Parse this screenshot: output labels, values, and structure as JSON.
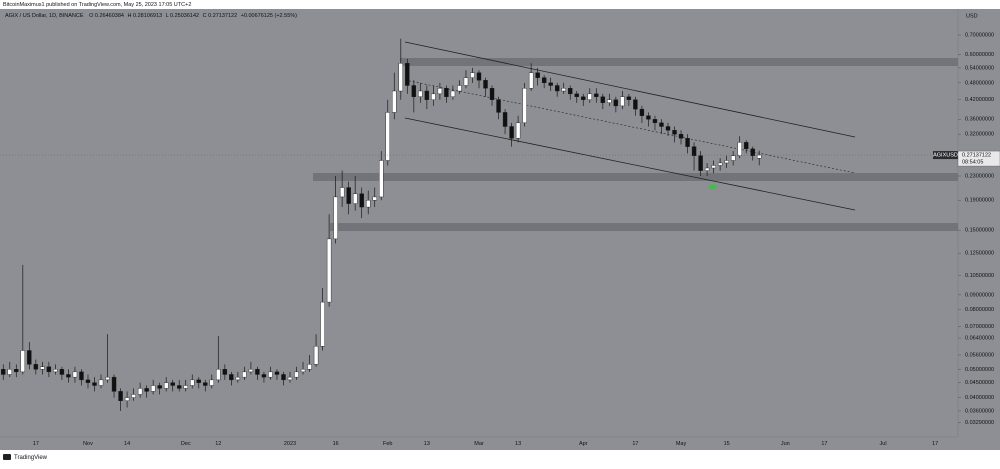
{
  "chart_data": {
    "type": "candlestick",
    "publisher": "BitcoinMaximus1 published on TradingView.com, May 25, 2023 17:05 UTC+2",
    "symbol": "AGIX / US Dollar, 1D, BINANCE",
    "ohlc_labels": [
      "O",
      "H",
      "L",
      "C"
    ],
    "change": "+0.00676125 (+2.55%)",
    "currency": "USD",
    "symbol_tag": "AGIXUSD",
    "countdown": "08:54:05",
    "brand": "TradingView",
    "log_scale": true,
    "grid": false,
    "up_color": "#ffffff",
    "down_color": "#111111",
    "wick_color": "#1a1a1a",
    "ylim": [
      0.0293,
      0.853
    ],
    "yticks": [
      {
        "value": 0.7,
        "label": "0.70000000"
      },
      {
        "value": 0.6,
        "label": "0.60000000"
      },
      {
        "value": 0.54,
        "label": "0.54000000"
      },
      {
        "value": 0.48,
        "label": "0.48000000"
      },
      {
        "value": 0.42,
        "label": "0.42000000"
      },
      {
        "value": 0.36,
        "label": "0.36000000"
      },
      {
        "value": 0.32,
        "label": "0.32000000"
      },
      {
        "value": 0.23,
        "label": "0.23000000"
      },
      {
        "value": 0.19,
        "label": "0.19000000"
      },
      {
        "value": 0.15,
        "label": "0.15000000"
      },
      {
        "value": 0.125,
        "label": "0.12500000"
      },
      {
        "value": 0.105,
        "label": "0.10500000"
      },
      {
        "value": 0.09,
        "label": "0.09000000"
      },
      {
        "value": 0.08,
        "label": "0.08000000"
      },
      {
        "value": 0.07,
        "label": "0.07000000"
      },
      {
        "value": 0.064,
        "label": "0.06400000"
      },
      {
        "value": 0.056,
        "label": "0.05600000"
      },
      {
        "value": 0.05,
        "label": "0.05000000"
      },
      {
        "value": 0.045,
        "label": "0.04500000"
      },
      {
        "value": 0.04,
        "label": "0.04000000"
      },
      {
        "value": 0.036,
        "label": "0.03600000"
      },
      {
        "value": 0.0329,
        "label": "0.03290000"
      }
    ],
    "categories": [
      null,
      null,
      null,
      null,
      null,
      "17",
      null,
      null,
      null,
      null,
      null,
      null,
      null,
      "Nov",
      null,
      null,
      null,
      null,
      null,
      "14",
      null,
      null,
      null,
      null,
      null,
      null,
      null,
      null,
      "Dec",
      null,
      null,
      null,
      null,
      "12",
      null,
      null,
      null,
      null,
      null,
      null,
      null,
      null,
      null,
      null,
      "2023",
      null,
      null,
      null,
      null,
      null,
      null,
      "16",
      null,
      null,
      null,
      null,
      null,
      null,
      null,
      "Feb",
      null,
      null,
      null,
      null,
      null,
      "13",
      null,
      null,
      null,
      null,
      null,
      null,
      null,
      "Mar",
      null,
      null,
      null,
      null,
      null,
      "13",
      null,
      null,
      null,
      null,
      null,
      null,
      null,
      null,
      null,
      "Apr",
      null,
      null,
      null,
      null,
      null,
      null,
      null,
      "17",
      null,
      null,
      null,
      null,
      null,
      null,
      "May",
      null,
      null,
      null,
      null,
      null,
      null,
      "15",
      null,
      null,
      null,
      null,
      null,
      null,
      null,
      null,
      "Jun",
      null,
      null,
      null,
      null,
      null,
      "17",
      null,
      null,
      null,
      null,
      null,
      null,
      null,
      null,
      "Jul",
      null,
      null,
      null,
      null,
      null,
      null,
      null,
      "17",
      null,
      null,
      null
    ],
    "open": [
      0.05,
      0.048,
      0.05,
      0.049,
      0.058,
      0.052,
      0.05,
      0.051,
      0.049,
      0.05,
      0.048,
      0.047,
      0.049,
      0.046,
      0.045,
      0.044,
      0.046,
      0.047,
      0.042,
      0.039,
      0.04,
      0.041,
      0.043,
      0.042,
      0.044,
      0.043,
      0.045,
      0.044,
      0.043,
      0.044,
      0.046,
      0.045,
      0.044,
      0.046,
      0.05,
      0.048,
      0.046,
      0.047,
      0.049,
      0.05,
      0.048,
      0.047,
      0.049,
      0.048,
      0.046,
      0.047,
      0.049,
      0.05,
      0.052,
      0.06,
      0.085,
      0.14,
      0.195,
      0.21,
      0.185,
      0.2,
      0.18,
      0.19,
      0.195,
      0.26,
      0.38,
      0.45,
      0.56,
      0.47,
      0.43,
      0.45,
      0.42,
      0.44,
      0.46,
      0.43,
      0.45,
      0.47,
      0.5,
      0.52,
      0.49,
      0.46,
      0.42,
      0.38,
      0.34,
      0.31,
      0.35,
      0.46,
      0.52,
      0.5,
      0.48,
      0.47,
      0.45,
      0.46,
      0.44,
      0.43,
      0.42,
      0.44,
      0.43,
      0.41,
      0.42,
      0.4,
      0.43,
      0.42,
      0.39,
      0.37,
      0.36,
      0.35,
      0.34,
      0.33,
      0.32,
      0.31,
      0.29,
      0.27,
      0.24,
      0.245,
      0.25,
      0.255,
      0.26,
      0.27,
      0.3,
      0.285,
      0.26460384,
      null,
      null,
      null,
      null,
      null,
      null,
      null,
      null,
      null,
      null,
      null,
      null,
      null,
      null,
      null,
      null,
      null,
      null,
      null,
      null,
      null,
      null,
      null,
      null,
      null,
      null,
      null,
      null,
      null,
      null
    ],
    "high": [
      0.052,
      0.053,
      0.052,
      0.114,
      0.062,
      0.054,
      0.053,
      0.053,
      0.052,
      0.051,
      0.05,
      0.051,
      0.05,
      0.048,
      0.047,
      0.048,
      0.066,
      0.048,
      0.043,
      0.042,
      0.043,
      0.045,
      0.044,
      0.046,
      0.045,
      0.047,
      0.046,
      0.046,
      0.046,
      0.048,
      0.047,
      0.046,
      0.048,
      0.065,
      0.052,
      0.049,
      0.049,
      0.051,
      0.053,
      0.051,
      0.049,
      0.051,
      0.05,
      0.049,
      0.049,
      0.051,
      0.053,
      0.056,
      0.066,
      0.095,
      0.17,
      0.23,
      0.24,
      0.22,
      0.23,
      0.21,
      0.205,
      0.21,
      0.28,
      0.42,
      0.52,
      0.68,
      0.58,
      0.49,
      0.48,
      0.47,
      0.47,
      0.48,
      0.47,
      0.47,
      0.49,
      0.53,
      0.54,
      0.53,
      0.5,
      0.47,
      0.43,
      0.39,
      0.35,
      0.37,
      0.48,
      0.56,
      0.54,
      0.51,
      0.5,
      0.48,
      0.48,
      0.47,
      0.45,
      0.44,
      0.46,
      0.46,
      0.44,
      0.44,
      0.43,
      0.45,
      0.44,
      0.43,
      0.4,
      0.38,
      0.37,
      0.36,
      0.35,
      0.34,
      0.33,
      0.32,
      0.3,
      0.28,
      0.255,
      0.26,
      0.265,
      0.27,
      0.28,
      0.315,
      0.305,
      0.29,
      0.28106913,
      null,
      null,
      null,
      null,
      null,
      null,
      null,
      null,
      null,
      null,
      null,
      null,
      null,
      null,
      null,
      null,
      null,
      null,
      null,
      null,
      null,
      null,
      null,
      null,
      null,
      null,
      null,
      null,
      null,
      null
    ],
    "low": [
      0.046,
      0.047,
      0.047,
      0.048,
      0.05,
      0.048,
      0.048,
      0.047,
      0.048,
      0.046,
      0.045,
      0.045,
      0.044,
      0.043,
      0.042,
      0.043,
      0.045,
      0.04,
      0.036,
      0.037,
      0.039,
      0.04,
      0.04,
      0.041,
      0.041,
      0.042,
      0.042,
      0.042,
      0.042,
      0.043,
      0.043,
      0.042,
      0.043,
      0.045,
      0.046,
      0.044,
      0.045,
      0.046,
      0.048,
      0.046,
      0.045,
      0.046,
      0.046,
      0.044,
      0.045,
      0.046,
      0.048,
      0.049,
      0.051,
      0.058,
      0.082,
      0.135,
      0.18,
      0.17,
      0.175,
      0.165,
      0.17,
      0.18,
      0.19,
      0.25,
      0.36,
      0.42,
      0.44,
      0.38,
      0.41,
      0.39,
      0.4,
      0.42,
      0.41,
      0.42,
      0.44,
      0.46,
      0.48,
      0.46,
      0.43,
      0.4,
      0.36,
      0.32,
      0.29,
      0.3,
      0.34,
      0.45,
      0.47,
      0.46,
      0.45,
      0.43,
      0.44,
      0.42,
      0.41,
      0.4,
      0.41,
      0.41,
      0.39,
      0.4,
      0.38,
      0.39,
      0.4,
      0.37,
      0.35,
      0.34,
      0.33,
      0.32,
      0.315,
      0.3,
      0.295,
      0.275,
      0.24,
      0.23,
      0.23,
      0.235,
      0.24,
      0.245,
      0.25,
      0.265,
      0.275,
      0.26,
      0.25036142,
      null,
      null,
      null,
      null,
      null,
      null,
      null,
      null,
      null,
      null,
      null,
      null,
      null,
      null,
      null,
      null,
      null,
      null,
      null,
      null,
      null,
      null,
      null,
      null,
      null,
      null,
      null,
      null,
      null,
      null
    ],
    "close": [
      0.048,
      0.05,
      0.049,
      0.058,
      0.052,
      0.05,
      0.051,
      0.049,
      0.05,
      0.048,
      0.047,
      0.049,
      0.046,
      0.045,
      0.044,
      0.046,
      0.047,
      0.042,
      0.039,
      0.04,
      0.041,
      0.043,
      0.042,
      0.044,
      0.043,
      0.045,
      0.044,
      0.043,
      0.044,
      0.046,
      0.045,
      0.044,
      0.046,
      0.05,
      0.048,
      0.046,
      0.047,
      0.049,
      0.05,
      0.048,
      0.047,
      0.049,
      0.048,
      0.046,
      0.047,
      0.049,
      0.05,
      0.052,
      0.06,
      0.085,
      0.14,
      0.195,
      0.21,
      0.185,
      0.2,
      0.18,
      0.19,
      0.195,
      0.26,
      0.38,
      0.45,
      0.56,
      0.47,
      0.43,
      0.45,
      0.42,
      0.44,
      0.46,
      0.43,
      0.45,
      0.47,
      0.5,
      0.52,
      0.49,
      0.46,
      0.42,
      0.38,
      0.34,
      0.31,
      0.35,
      0.46,
      0.52,
      0.5,
      0.48,
      0.47,
      0.45,
      0.46,
      0.44,
      0.43,
      0.42,
      0.44,
      0.43,
      0.41,
      0.42,
      0.4,
      0.43,
      0.42,
      0.39,
      0.37,
      0.36,
      0.35,
      0.34,
      0.33,
      0.32,
      0.31,
      0.29,
      0.27,
      0.24,
      0.245,
      0.25,
      0.255,
      0.26,
      0.27,
      0.3,
      0.285,
      0.27,
      0.27137122,
      null,
      null,
      null,
      null,
      null,
      null,
      null,
      null,
      null,
      null,
      null,
      null,
      null,
      null,
      null,
      null,
      null,
      null,
      null,
      null,
      null,
      null,
      null,
      null,
      null,
      null,
      null,
      null,
      null,
      null
    ]
  }
}
